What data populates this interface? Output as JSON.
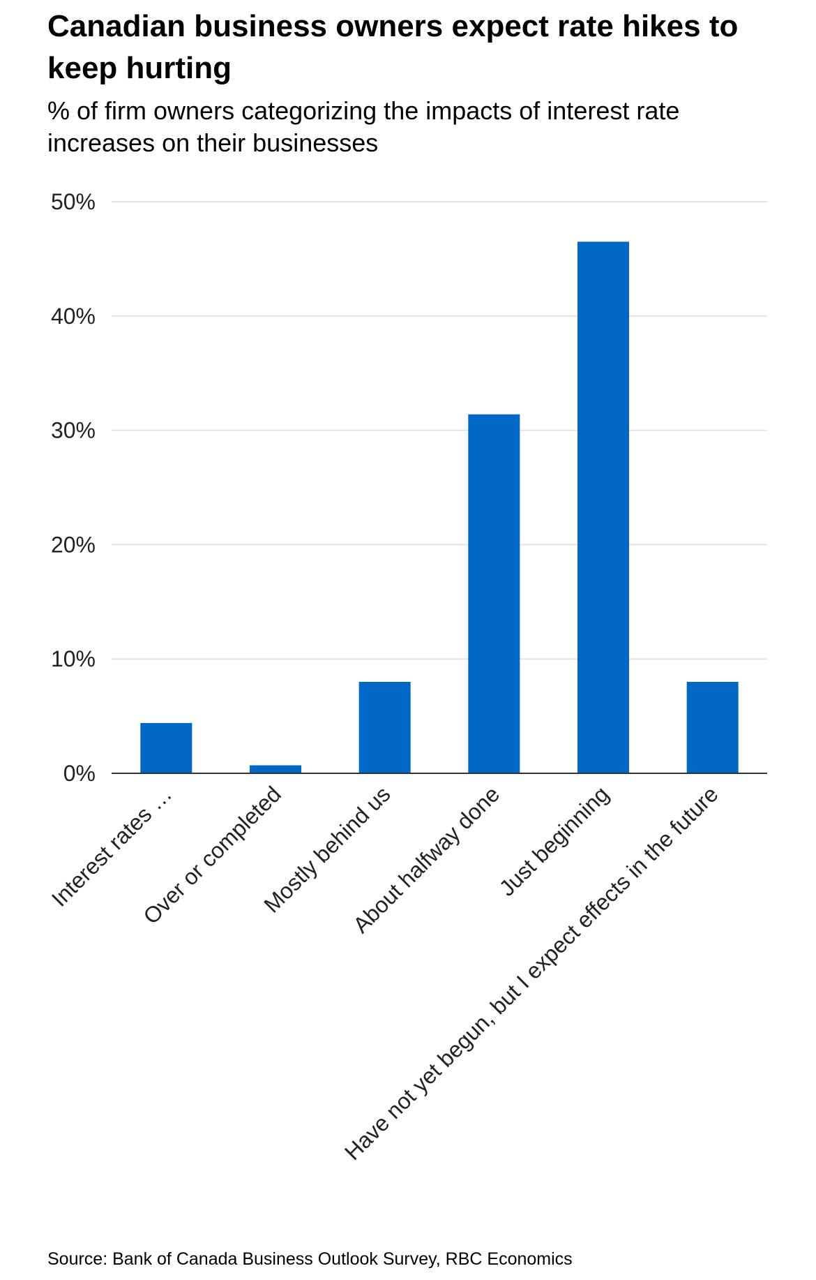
{
  "chart_data": {
    "type": "bar",
    "title": "Canadian business owners expect rate hikes to keep hurting",
    "subtitle": "% of firm owners categorizing the impacts of interest rate increases on their businesses",
    "source": "Source: Bank of Canada Business Outlook Survey, RBC Economics",
    "xlabel": "",
    "ylabel": "",
    "categories": [
      "Interest rates …",
      "Over or completed",
      "Mostly behind us",
      "About halfway done",
      "Just beginning",
      "Have not yet begun, but I expect effects in the future"
    ],
    "values": [
      4.4,
      0.7,
      8.0,
      31.4,
      46.5,
      8.0
    ],
    "ylim": [
      0,
      50
    ],
    "yticks": [
      0,
      10,
      20,
      30,
      40,
      50
    ],
    "ytick_labels": [
      "0%",
      "10%",
      "20%",
      "30%",
      "40%",
      "50%"
    ],
    "bar_color": "#0069c8",
    "gridline_color": "#e4e4e4",
    "grid": true,
    "legend": "none"
  }
}
